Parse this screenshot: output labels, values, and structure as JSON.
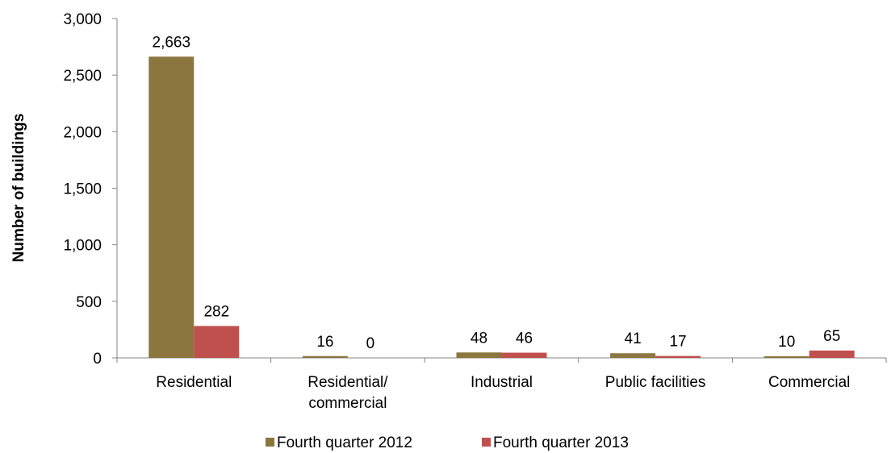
{
  "chart_data": {
    "type": "bar",
    "title": "",
    "xlabel": "",
    "ylabel": "Number of buildings",
    "ylim": [
      0,
      3000
    ],
    "yticks": [
      "0",
      "500",
      "1,000",
      "1,500",
      "2,000",
      "2,500",
      "3,000"
    ],
    "ytick_values": [
      0,
      500,
      1000,
      1500,
      2000,
      2500,
      3000
    ],
    "categories": [
      [
        "Residential"
      ],
      [
        "Residential/",
        "commercial"
      ],
      [
        "Industrial"
      ],
      [
        "Public facilities"
      ],
      [
        "Commercial"
      ]
    ],
    "series": [
      {
        "name": "Fourth quarter 2012",
        "color": "#8c7640",
        "values": [
          2663,
          16,
          48,
          41,
          10
        ],
        "labels": [
          "2,663",
          "16",
          "48",
          "41",
          "10"
        ]
      },
      {
        "name": "Fourth quarter 2013",
        "color": "#c0504d",
        "values": [
          282,
          0,
          46,
          17,
          65
        ],
        "labels": [
          "282",
          "0",
          "46",
          "17",
          "65"
        ]
      }
    ],
    "grid": false,
    "legend": "bottom"
  }
}
